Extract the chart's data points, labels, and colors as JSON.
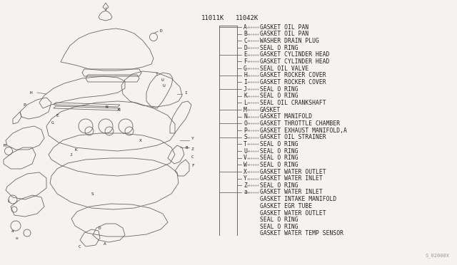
{
  "bg_color": "#f5f3ef",
  "part_numbers": [
    "11011K",
    "11042K"
  ],
  "legend_items": [
    {
      "label": "A",
      "desc": "GASKET OIL PAN"
    },
    {
      "label": "B",
      "desc": "GASKET OIL PAN"
    },
    {
      "label": "C",
      "desc": "WASHER DRAIN PLUG"
    },
    {
      "label": "D",
      "desc": "SEAL O RING"
    },
    {
      "label": "E",
      "desc": "GASKET CYLINDER HEAD"
    },
    {
      "label": "F",
      "desc": "GASKET CYLINDER HEAD"
    },
    {
      "label": "G",
      "desc": "SEAL OIL VALVE"
    },
    {
      "label": "H",
      "desc": "GASKET ROCKER COVER"
    },
    {
      "label": "I",
      "desc": "GASKET ROCKER COVER"
    },
    {
      "label": "J",
      "desc": "SEAL O RING"
    },
    {
      "label": "K",
      "desc": "SEAL O RING"
    },
    {
      "label": "L",
      "desc": "SEAL OIL CRANKSHAFT"
    },
    {
      "label": "M",
      "desc": "GASKET"
    },
    {
      "label": "N",
      "desc": "GASKET MANIFOLD"
    },
    {
      "label": "O",
      "desc": "GASKET THROTTLE CHAMBER"
    },
    {
      "label": "P",
      "desc": "GASKET EXHAUST MANIFOLD,A"
    },
    {
      "label": "S",
      "desc": "GASKET OIL STRAINER"
    },
    {
      "label": "T",
      "desc": "SEAL O RING"
    },
    {
      "label": "U",
      "desc": "SEAL O RING"
    },
    {
      "label": "V",
      "desc": "SEAL O RING"
    },
    {
      "label": "W",
      "desc": "SEAL O RING"
    },
    {
      "label": "X",
      "desc": "GASKET WATER OUTLET"
    },
    {
      "label": "Y",
      "desc": "GASKET WATER INLET"
    },
    {
      "label": "Z",
      "desc": "SEAL O RING"
    },
    {
      "label": "a",
      "desc": "GASKET WATER INLET"
    },
    {
      "label": "",
      "desc": "GASKET INTAKE MANIFOLD"
    },
    {
      "label": "",
      "desc": "GASKET EGR TUBE"
    },
    {
      "label": "",
      "desc": "GASKET WATER OUTLET"
    },
    {
      "label": "",
      "desc": "SEAL O RING"
    },
    {
      "label": "",
      "desc": "SEAL O RING"
    },
    {
      "label": "",
      "desc": "GASKET WATER TEMP SENSOR"
    }
  ],
  "watermark": "S_02000X",
  "text_color": "#222222",
  "line_color": "#666666",
  "font_size": 5.8,
  "pn_font_size": 6.5
}
